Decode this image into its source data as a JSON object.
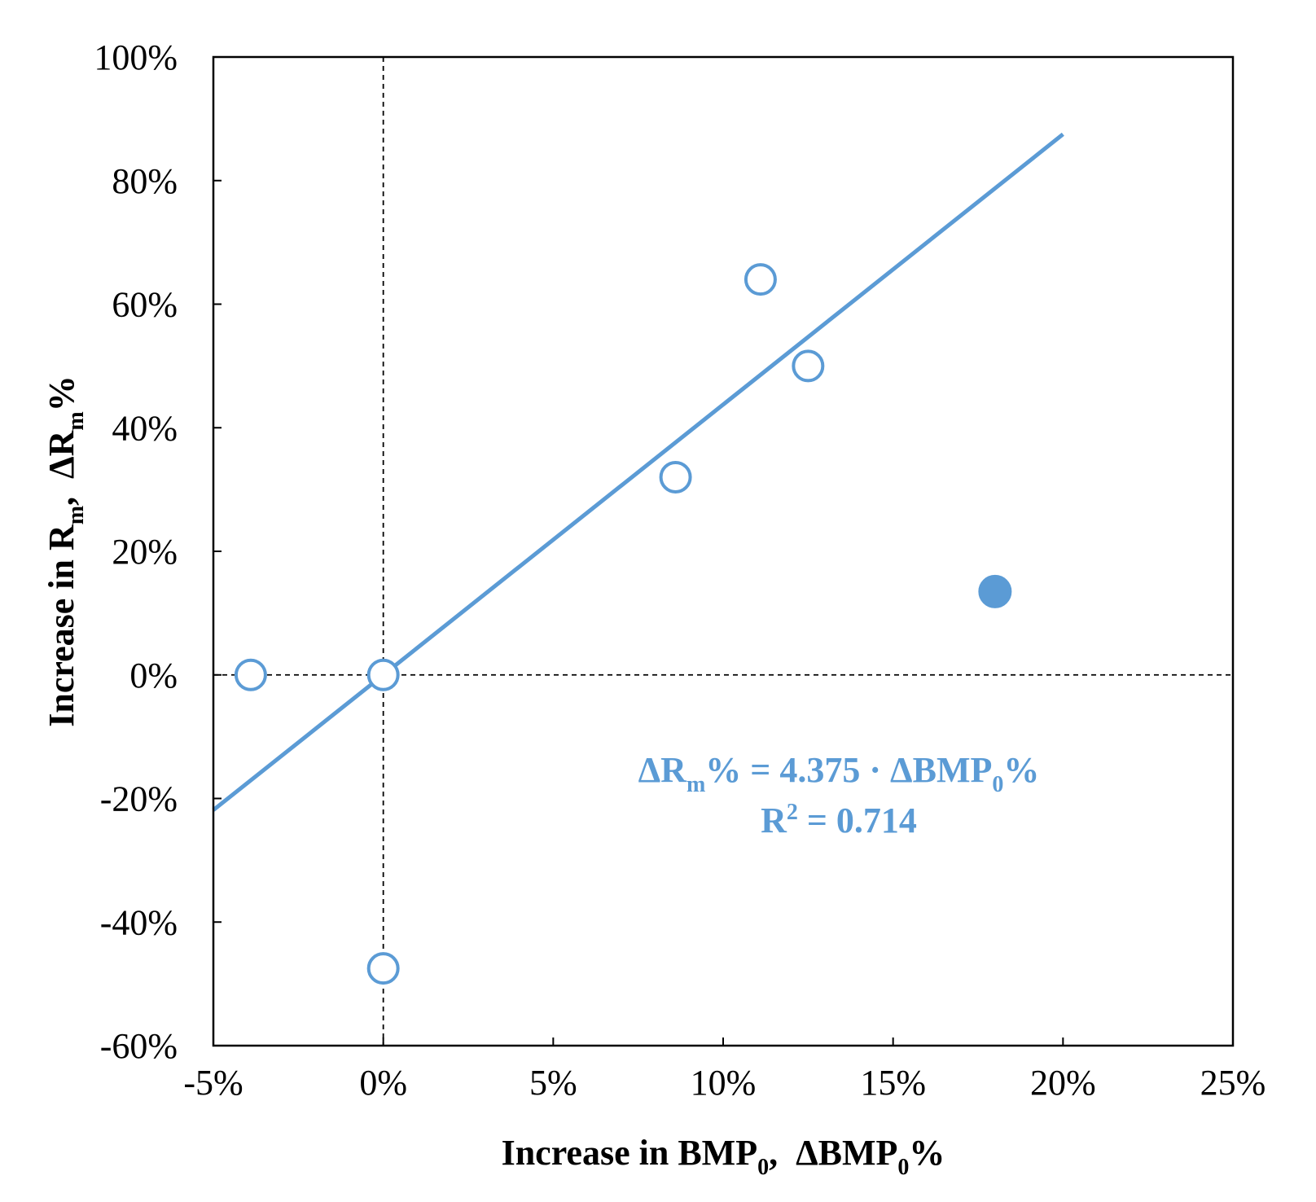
{
  "chart_data": {
    "type": "scatter",
    "xlim": [
      -5,
      25
    ],
    "ylim": [
      -60,
      100
    ],
    "x_ticks": [
      -5,
      0,
      5,
      10,
      15,
      20,
      25
    ],
    "y_ticks": [
      -60,
      -40,
      -20,
      0,
      20,
      40,
      60,
      80,
      100
    ],
    "x_tick_labels": [
      "-5%",
      "0%",
      "5%",
      "10%",
      "15%",
      "20%",
      "25%"
    ],
    "y_tick_labels": [
      "-60%",
      "-40%",
      "-20%",
      "0%",
      "20%",
      "40%",
      "60%",
      "80%",
      "100%"
    ],
    "xlabel": {
      "main": "Increase in BMP",
      "sub": "0",
      "sep": ",  ",
      "main2": "ΔBMP",
      "sub2": "0",
      "suffix": "%"
    },
    "ylabel": {
      "main": "Increase in R",
      "sub": "m",
      "sep": ",  ",
      "main2": "ΔR",
      "sub2": "m",
      "suffix": "%"
    },
    "reference_lines": {
      "x": 0,
      "y": 0,
      "style": "dashed"
    },
    "series": [
      {
        "name": "open points",
        "marker": "open-circle",
        "points": [
          {
            "x": -3.9,
            "y": 0
          },
          {
            "x": 0,
            "y": 0
          },
          {
            "x": 0,
            "y": -47.5
          },
          {
            "x": 8.6,
            "y": 32
          },
          {
            "x": 11.1,
            "y": 64
          },
          {
            "x": 12.5,
            "y": 50
          }
        ]
      },
      {
        "name": "filled point",
        "marker": "filled-circle",
        "points": [
          {
            "x": 18,
            "y": 13.5
          }
        ]
      }
    ],
    "fit_line": {
      "slope": 4.375,
      "intercept": 0,
      "x_range": [
        -5,
        20
      ]
    },
    "annotation": {
      "eq_a": "ΔR",
      "eq_a_sub": "m",
      "eq_b": "% = 4.375 · ΔBMP",
      "eq_b_sub": "0",
      "eq_c": "%",
      "r2_a": "R",
      "r2_sup": "2",
      "r2_b": " = 0.714"
    },
    "colors": {
      "series": "#5b9bd5",
      "axis": "#000000"
    }
  }
}
